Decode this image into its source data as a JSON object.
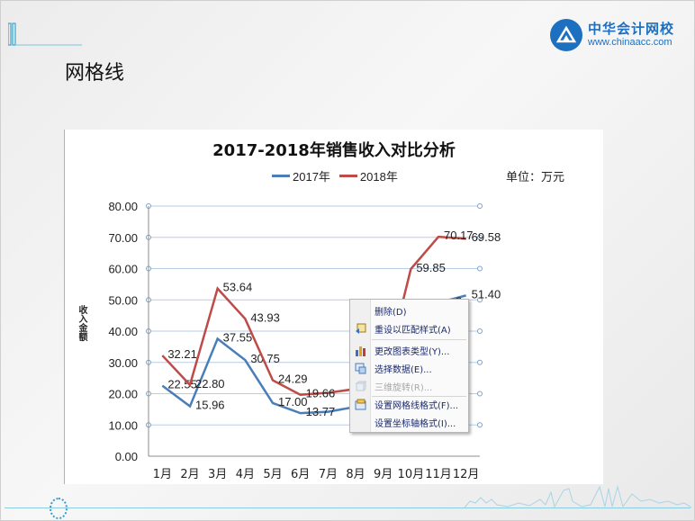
{
  "slide": {
    "title": "网格线"
  },
  "logo": {
    "name_cn": "中华会计网校",
    "url": "www.chinaacc.com",
    "color": "#1d6fbf"
  },
  "chart": {
    "unit_label": "单位：万元"
  },
  "context_menu": {
    "items": [
      {
        "label": "删除(D)",
        "icon": "none",
        "enabled": true
      },
      {
        "label": "重设以匹配样式(A)",
        "icon": "reset-style-icon",
        "enabled": true
      },
      {
        "label": "更改图表类型(Y)...",
        "icon": "chart-type-icon",
        "enabled": true
      },
      {
        "label": "选择数据(E)...",
        "icon": "select-data-icon",
        "enabled": true
      },
      {
        "label": "三维旋转(R)...",
        "icon": "3d-rotation-icon",
        "enabled": false
      },
      {
        "label": "设置网格线格式(F)...",
        "icon": "format-gridlines-icon",
        "enabled": true
      },
      {
        "label": "设置坐标轴格式(I)...",
        "icon": "none",
        "enabled": true
      }
    ]
  },
  "chart_data": {
    "type": "line",
    "title": "2017-2018年销售收入对比分析",
    "xlabel": "",
    "ylabel": "收入金额",
    "categories": [
      "1月",
      "2月",
      "3月",
      "4月",
      "5月",
      "6月",
      "7月",
      "8月",
      "9月",
      "10月",
      "11月",
      "12月"
    ],
    "series": [
      {
        "name": "2017年",
        "color": "#4a7ebb",
        "values": [
          22.55,
          15.96,
          37.55,
          30.75,
          17.0,
          13.77,
          14.2,
          15.8,
          17.5,
          47.5,
          49.12,
          51.4
        ]
      },
      {
        "name": "2018年",
        "color": "#be4b48",
        "values": [
          32.21,
          22.8,
          53.64,
          43.93,
          24.29,
          19.66,
          20.3,
          21.5,
          24.0,
          59.85,
          70.17,
          69.58
        ]
      }
    ],
    "visible_data_labels": {
      "2017年": [
        "22.55",
        "15.96",
        "37.55",
        "30.75",
        "17.00",
        "13.77",
        null,
        null,
        null,
        null,
        "…2",
        "51.40"
      ],
      "2018年": [
        "32.21",
        "22.80",
        "53.64",
        "43.93",
        "24.29",
        "19.66",
        null,
        null,
        null,
        "59.85",
        "70.17",
        "69.58"
      ]
    },
    "ylim": [
      0,
      80
    ],
    "yticks": [
      "0.00",
      "10.00",
      "20.00",
      "30.00",
      "40.00",
      "50.00",
      "60.00",
      "70.00",
      "80.00"
    ],
    "grid": true,
    "legend_position": "top"
  }
}
